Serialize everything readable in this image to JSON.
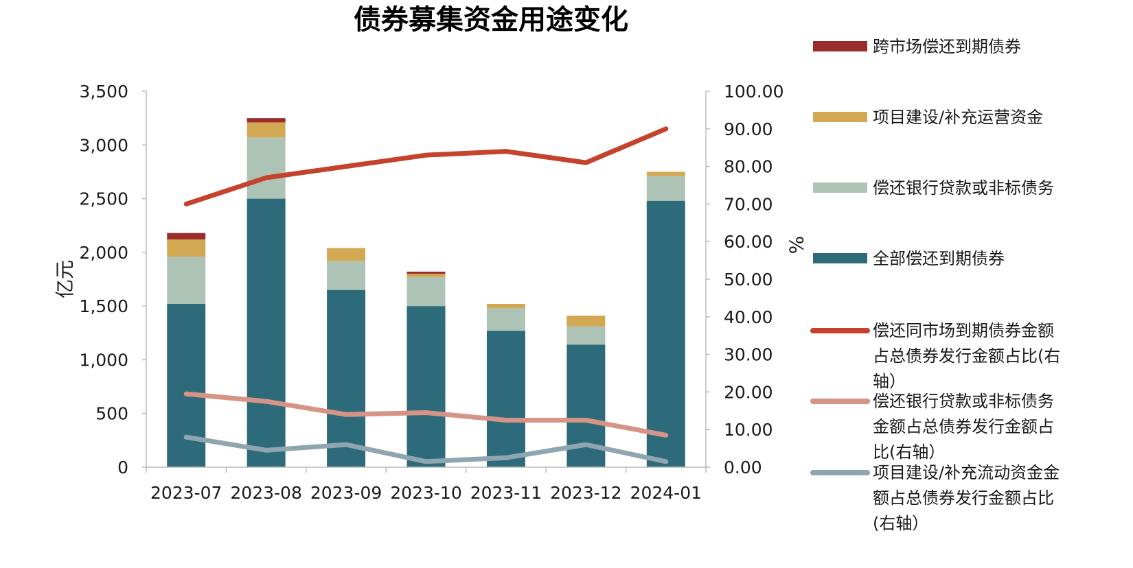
{
  "chart_data": {
    "type": "bar+line",
    "title": "债券募集资金用途变化",
    "categories": [
      "2023-07",
      "2023-08",
      "2023-09",
      "2023-10",
      "2023-11",
      "2023-12",
      "2024-01"
    ],
    "left_axis": {
      "label": "亿元",
      "ylim": [
        0,
        3500
      ],
      "ticks": [
        "0",
        "500",
        "1,000",
        "1,500",
        "2,000",
        "2,500",
        "3,000",
        "3,500"
      ]
    },
    "right_axis": {
      "label": "%",
      "ylim": [
        0,
        100
      ],
      "ticks": [
        "0.00",
        "10.00",
        "20.00",
        "30.00",
        "40.00",
        "50.00",
        "60.00",
        "70.00",
        "80.00",
        "90.00",
        "100.00"
      ]
    },
    "bar_series": [
      {
        "name": "全部偿还到期债券",
        "color": "#2e6b7a",
        "values": [
          1520,
          2500,
          1650,
          1500,
          1270,
          1140,
          2480
        ]
      },
      {
        "name": "偿还银行贷款或非标债务",
        "color": "#adc3b5",
        "values": [
          440,
          570,
          270,
          270,
          210,
          170,
          230
        ]
      },
      {
        "name": "项目建设/补充运营资金",
        "color": "#d3a853",
        "values": [
          160,
          140,
          120,
          30,
          40,
          100,
          40
        ]
      },
      {
        "name": "跨市场偿还到期债券",
        "color": "#9b2c2c",
        "values": [
          60,
          40,
          0,
          20,
          0,
          0,
          0
        ]
      }
    ],
    "line_series": [
      {
        "name": "偿还同市场到期债券金额占总债券发行金额占比(右轴）",
        "color": "#c5432d",
        "values": [
          70,
          77,
          80,
          83,
          84,
          81,
          90
        ]
      },
      {
        "name": "偿还银行贷款或非标债务金额占总债券发行金额占比(右轴）",
        "color": "#d69487",
        "values": [
          19.5,
          17.5,
          14,
          14.5,
          12.5,
          12.5,
          8.5
        ]
      },
      {
        "name": "项目建设/补充流动资金金额占总债券发行金额占比(右轴）",
        "color": "#8fa6b1",
        "values": [
          8,
          4.5,
          6,
          1.5,
          2.5,
          6,
          1.5
        ]
      }
    ],
    "legend_placement": "right",
    "grid": false
  }
}
